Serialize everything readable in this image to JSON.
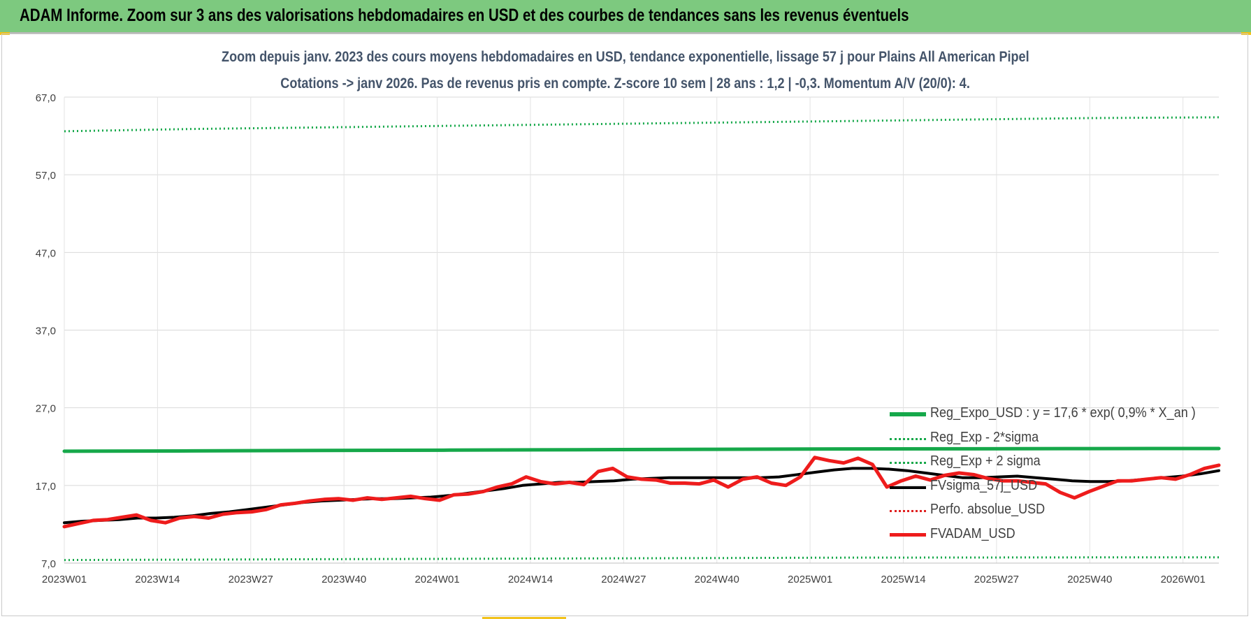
{
  "banner": {
    "title": "ADAM Informe. Zoom sur 3 ans des valorisations hebdomadaires en USD et des courbes de tendances sans les revenus éventuels"
  },
  "colors": {
    "banner_bg": "#7dc97f",
    "title_text": "#44546a",
    "trend_green": "#16a84a",
    "smoothing_black": "#000000",
    "price_red": "#ee1c1c",
    "perf_red": "#e02020"
  },
  "chart_data": {
    "type": "line",
    "title_line1": "Zoom depuis janv. 2023 des cours moyens hebdomadaires en USD, tendance exponentielle, lissage 57 j pour Plains All American Pipel",
    "title_line2": "Cotations -> janv 2026. Pas de revenus pris en compte. Z-score 10 sem | 28 ans : 1,2 | -0,3. Momentum A/V (20/0): 4.",
    "y_ticks": [
      "67,0",
      "57,0",
      "47,0",
      "37,0",
      "27,0",
      "17,0",
      "7,0"
    ],
    "ylim": [
      7,
      67
    ],
    "x_ticks": [
      "2023W01",
      "2023W14",
      "2023W27",
      "2023W40",
      "2024W01",
      "2024W14",
      "2024W27",
      "2024W40",
      "2025W01",
      "2025W14",
      "2025W27",
      "2025W40",
      "2026W01"
    ],
    "x_tick_week_index": [
      0,
      13,
      26,
      39,
      52,
      65,
      78,
      91,
      104,
      117,
      130,
      143,
      156
    ],
    "week_count": 162,
    "grid": true,
    "legend_position": "lower-right",
    "series": [
      {
        "name": "Reg_Expo_USD : y = 17,6 * exp( 0,9% *  X_an )",
        "style": "solid-thick",
        "color": "#16a84a",
        "values": [
          21.4,
          21.45,
          21.5,
          21.55,
          21.6,
          21.65,
          21.7,
          21.72,
          21.74,
          21.75
        ]
      },
      {
        "name": "Reg_Exp - 2*sigma",
        "style": "dotted",
        "color": "#16a84a",
        "values": [
          7.4,
          7.45,
          7.5,
          7.55,
          7.6,
          7.65,
          7.7,
          7.72,
          7.74,
          7.75
        ]
      },
      {
        "name": "Reg_Exp + 2 sigma",
        "style": "dotted",
        "color": "#16a84a",
        "values": [
          62.6,
          62.9,
          63.1,
          63.3,
          63.5,
          63.7,
          63.9,
          64.1,
          64.3,
          64.4
        ]
      },
      {
        "name": "FVsigma_57j_USD",
        "style": "solid",
        "color": "#000000",
        "values": [
          12.2,
          12.4,
          12.5,
          12.6,
          12.8,
          12.8,
          12.9,
          13.1,
          13.4,
          13.6,
          13.9,
          14.2,
          14.5,
          14.8,
          15.0,
          15.1,
          15.2,
          15.3,
          15.3,
          15.4,
          15.5,
          15.7,
          16.0,
          16.3,
          16.6,
          17.0,
          17.2,
          17.4,
          17.4,
          17.5,
          17.6,
          17.8,
          17.9,
          18.0,
          18.0,
          18.0,
          18.0,
          18.0,
          18.0,
          18.1,
          18.4,
          18.7,
          19.0,
          19.2,
          19.2,
          19.1,
          18.9,
          18.6,
          18.3,
          18.0,
          18.0,
          18.1,
          18.2,
          18.0,
          17.8,
          17.6,
          17.5,
          17.5,
          17.6,
          17.8,
          18.0,
          18.2,
          18.5,
          18.9
        ]
      },
      {
        "name": "Perfo. absolue_USD",
        "style": "dotted",
        "color": "#e02020",
        "values": []
      },
      {
        "name": "FVADAM_USD",
        "style": "solid-thick",
        "color": "#ee1c1c",
        "values": [
          11.7,
          12.1,
          12.5,
          12.6,
          12.9,
          13.2,
          12.5,
          12.2,
          12.8,
          13.0,
          12.8,
          13.3,
          13.5,
          13.6,
          13.9,
          14.5,
          14.7,
          15.0,
          15.2,
          15.3,
          15.1,
          15.4,
          15.2,
          15.4,
          15.6,
          15.3,
          15.1,
          15.8,
          15.9,
          16.2,
          16.8,
          17.2,
          18.1,
          17.5,
          17.2,
          17.4,
          17.1,
          18.8,
          19.2,
          18.1,
          17.8,
          17.7,
          17.3,
          17.3,
          17.2,
          17.7,
          16.8,
          17.8,
          18.1,
          17.3,
          17.0,
          18.1,
          20.6,
          20.2,
          19.9,
          20.5,
          19.7,
          16.8,
          17.6,
          18.2,
          17.7,
          18.3,
          18.6,
          18.4,
          17.9,
          17.6,
          17.6,
          17.4,
          17.2,
          16.1,
          15.4,
          16.2,
          16.9,
          17.6,
          17.6,
          17.8,
          18.0,
          17.8,
          18.4,
          19.2,
          19.6
        ]
      }
    ]
  }
}
